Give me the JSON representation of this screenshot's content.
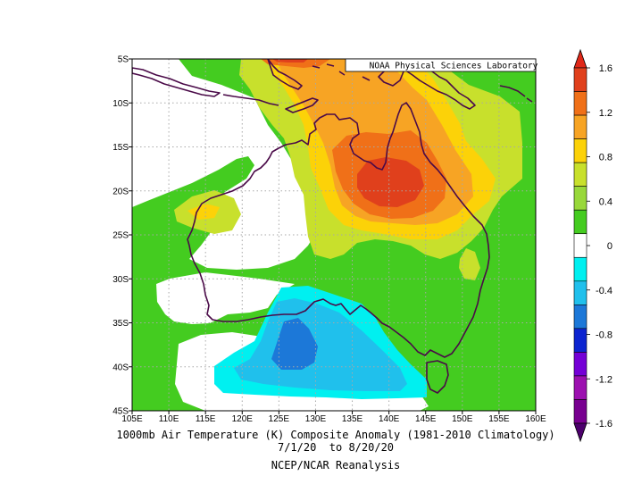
{
  "map": {
    "title": "1000mb Air Temperature (K) Composite Anomaly (1981-2010 Climatology)",
    "date_range": "7/1/20  to 8/20/20",
    "source": "NCEP/NCAR Reanalysis",
    "credit": "NOAA Physical Sciences Laboratory",
    "lon_ticks": [
      "105E",
      "110E",
      "115E",
      "120E",
      "125E",
      "130E",
      "135E",
      "140E",
      "145E",
      "150E",
      "155E",
      "160E"
    ],
    "lat_ticks": [
      "5S",
      "10S",
      "15S",
      "20S",
      "25S",
      "30S",
      "35S",
      "40S",
      "45S"
    ],
    "lon_range": [
      105,
      160
    ],
    "lat_range": [
      -45,
      -5
    ],
    "anomaly_hotspots": [
      {
        "label": "warm maximum",
        "lon": 140,
        "lat": -20,
        "value": 1.4
      },
      {
        "label": "cold minimum",
        "lon": 127,
        "lat": -38,
        "value": -0.8
      }
    ]
  },
  "colorbar": {
    "labels": [
      "1.6",
      "1.2",
      "0.8",
      "0.4",
      "0",
      "-0.4",
      "-0.8",
      "-1.2",
      "-1.6"
    ],
    "bins": [
      {
        "upper": 1.6,
        "color": "#e0401c"
      },
      {
        "upper": 1.4,
        "color": "#f07018"
      },
      {
        "upper": 1.2,
        "color": "#f7a424"
      },
      {
        "upper": 1.0,
        "color": "#fcd208"
      },
      {
        "upper": 0.8,
        "color": "#c8e02c"
      },
      {
        "upper": 0.6,
        "color": "#98d83a"
      },
      {
        "upper": 0.4,
        "color": "#44cc20"
      },
      {
        "upper": 0.2,
        "color": "#ffffff"
      },
      {
        "upper": -0.2,
        "color": "#00f0f0"
      },
      {
        "upper": -0.4,
        "color": "#20c0ec"
      },
      {
        "upper": -0.6,
        "color": "#1c78d8"
      },
      {
        "upper": -0.8,
        "color": "#0c24d0"
      },
      {
        "upper": -1.0,
        "color": "#7400d6"
      },
      {
        "upper": -1.2,
        "color": "#9c10b0"
      },
      {
        "upper": -1.4,
        "color": "#780090"
      }
    ],
    "top_arrow_color": "#e02818",
    "bottom_arrow_color": "#4c006c"
  },
  "colors": {
    "coastline": "#4a0a48",
    "grid": "#a8a8a8"
  }
}
